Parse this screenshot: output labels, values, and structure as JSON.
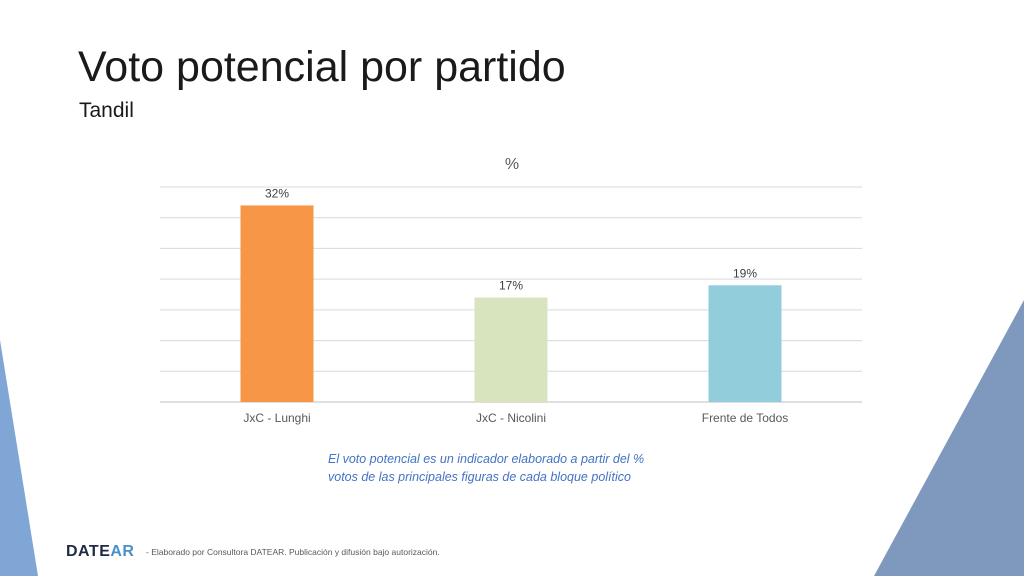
{
  "slide": {
    "title": "Voto potencial por partido",
    "subtitle": "Tandil",
    "note_lines": [
      "El voto potencial es un indicador elaborado a partir del %",
      "votos de las principales figuras de cada bloque político"
    ],
    "logo": {
      "part1": "DATE",
      "part2": "AR"
    },
    "footer": "- Elaborado por Consultora DATEAR. Publicación y difusión bajo autorización."
  },
  "colors": {
    "accent_blue": "#4472c4",
    "triangle_left": "#7fa6d4",
    "triangle_right": "#7f98bd"
  },
  "chart_data": {
    "type": "bar",
    "title": "%",
    "categories": [
      "JxC - Lunghi",
      "JxC - Nicolini",
      "Frente de Todos"
    ],
    "values": [
      32,
      17,
      19
    ],
    "data_labels": [
      "32%",
      "17%",
      "19%"
    ],
    "colors": [
      "#f79646",
      "#d7e4bd",
      "#92cddc"
    ],
    "ylim": [
      0,
      35
    ],
    "grid": true,
    "legend": "none"
  }
}
